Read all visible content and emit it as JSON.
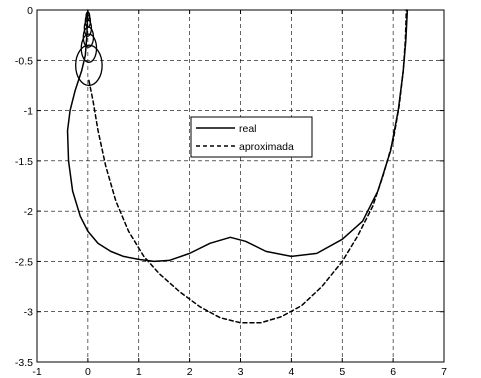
{
  "chart_data": {
    "type": "line",
    "title": "",
    "xlabel": "",
    "ylabel": "",
    "xlim": [
      -1,
      7
    ],
    "ylim": [
      -3.5,
      0
    ],
    "xticks": [
      -1,
      0,
      1,
      2,
      3,
      4,
      5,
      6,
      7
    ],
    "yticks": [
      0,
      -0.5,
      -1,
      -1.5,
      -2,
      -2.5,
      -3,
      -3.5
    ],
    "xtick_labels": [
      "-1",
      "0",
      "1",
      "2",
      "3",
      "4",
      "5",
      "6",
      "7"
    ],
    "ytick_labels": [
      "0",
      "-0.5",
      "-1",
      "-1.5",
      "-2",
      "-2.5",
      "-3",
      "-3.5"
    ],
    "grid": true,
    "legend_position": "center",
    "series": [
      {
        "name": "real",
        "line_style": "solid",
        "color": "#000000",
        "x": [
          0.0,
          -0.02,
          -0.05,
          -0.12,
          -0.25,
          -0.35,
          -0.4,
          -0.38,
          -0.3,
          -0.15,
          0.0,
          0.2,
          0.45,
          0.7,
          1.0,
          1.3,
          1.6,
          2.0,
          2.4,
          2.8,
          3.1,
          3.5,
          4.0,
          4.5,
          5.0,
          5.4,
          5.7,
          5.95,
          6.1,
          6.2,
          6.25,
          6.27,
          6.28
        ],
        "y": [
          0.0,
          -0.25,
          -0.45,
          -0.6,
          -0.8,
          -1.0,
          -1.2,
          -1.5,
          -1.8,
          -2.05,
          -2.2,
          -2.32,
          -2.4,
          -2.45,
          -2.48,
          -2.5,
          -2.49,
          -2.42,
          -2.32,
          -2.26,
          -2.3,
          -2.4,
          -2.45,
          -2.42,
          -2.28,
          -2.1,
          -1.8,
          -1.4,
          -1.0,
          -0.6,
          -0.3,
          -0.1,
          0.0
        ]
      },
      {
        "name": "aproximada",
        "line_style": "dashed",
        "color": "#000000",
        "x": [
          0.02,
          0.1,
          0.2,
          0.35,
          0.55,
          0.8,
          1.1,
          1.4,
          1.8,
          2.2,
          2.6,
          3.0,
          3.4,
          3.8,
          4.2,
          4.6,
          5.0,
          5.3,
          5.6,
          5.8,
          6.0,
          6.12,
          6.2,
          6.24,
          6.26
        ],
        "y": [
          -0.7,
          -0.9,
          -1.2,
          -1.55,
          -1.9,
          -2.2,
          -2.45,
          -2.62,
          -2.8,
          -2.95,
          -3.06,
          -3.11,
          -3.11,
          -3.05,
          -2.94,
          -2.75,
          -2.5,
          -2.25,
          -1.95,
          -1.65,
          -1.3,
          -0.95,
          -0.6,
          -0.3,
          0.0
        ]
      }
    ],
    "annotations": {
      "ellipses": [
        {
          "cx": 0.02,
          "cy": -0.55,
          "rx": 0.26,
          "ry": 0.2
        },
        {
          "cx": 0.02,
          "cy": -0.38,
          "rx": 0.15,
          "ry": 0.14
        },
        {
          "cx": 0.01,
          "cy": -0.27,
          "rx": 0.1,
          "ry": 0.1
        },
        {
          "cx": 0.0,
          "cy": -0.18,
          "rx": 0.07,
          "ry": 0.08
        },
        {
          "cx": 0.0,
          "cy": -0.11,
          "rx": 0.05,
          "ry": 0.06
        },
        {
          "cx": 0.0,
          "cy": -0.06,
          "rx": 0.035,
          "ry": 0.04
        }
      ]
    }
  }
}
